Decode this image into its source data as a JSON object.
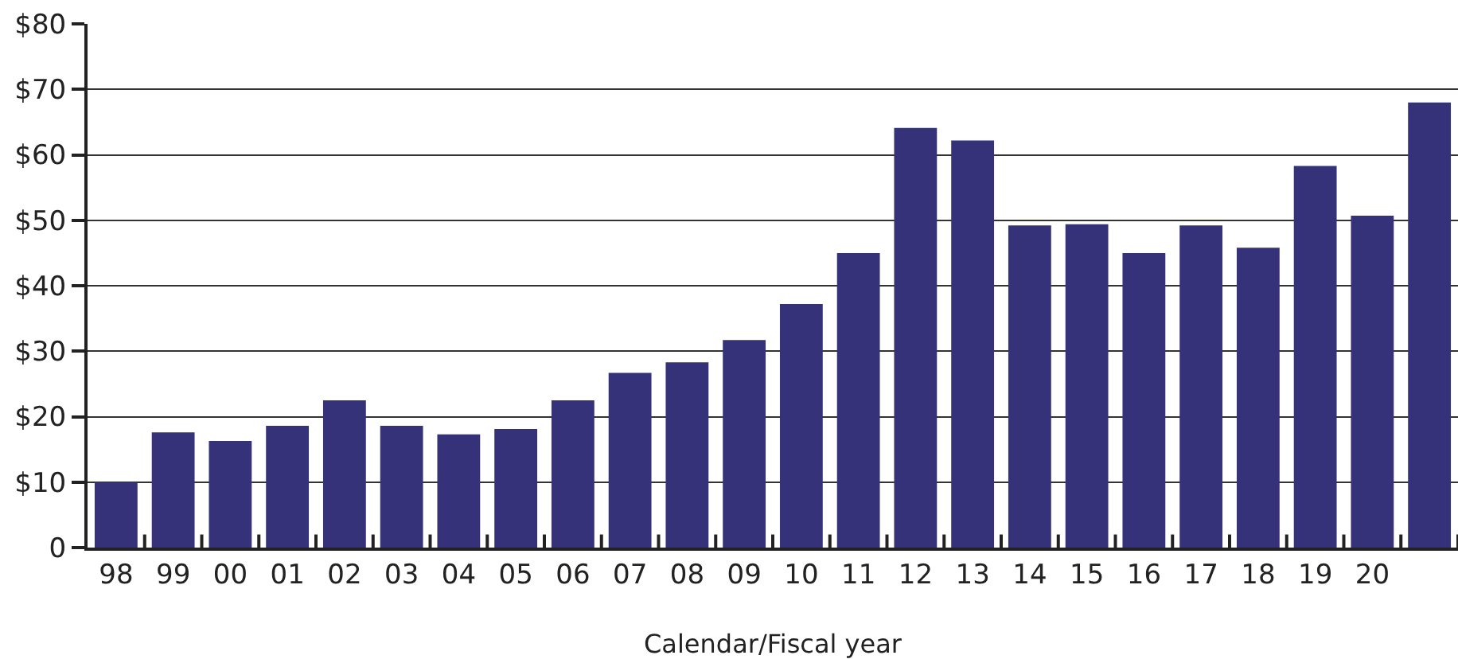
{
  "chart_data": {
    "type": "bar",
    "xlabel": "Calendar/Fiscal year",
    "categories": [
      "98",
      "99",
      "00",
      "01",
      "02",
      "03",
      "04",
      "05",
      "06",
      "07",
      "08",
      "09",
      "10",
      "11",
      "12",
      "13",
      "14",
      "15",
      "16",
      "17",
      "18",
      "19",
      "20",
      null
    ],
    "values": [
      10.0,
      17.6,
      16.3,
      18.6,
      22.5,
      18.6,
      17.3,
      18.1,
      22.5,
      26.7,
      28.3,
      31.7,
      37.2,
      45.0,
      64.1,
      62.2,
      49.2,
      49.4,
      45.0,
      49.2,
      45.8,
      58.3,
      50.7,
      68.0
    ],
    "color": "#36327a",
    "ylim": [
      0,
      80
    ],
    "yticks": [
      {
        "value": 0,
        "label": "0"
      },
      {
        "value": 10,
        "label": "$10"
      },
      {
        "value": 20,
        "label": "$20"
      },
      {
        "value": 30,
        "label": "$30"
      },
      {
        "value": 40,
        "label": "$40"
      },
      {
        "value": 50,
        "label": "$50"
      },
      {
        "value": 60,
        "label": "$60"
      },
      {
        "value": 70,
        "label": "$70"
      },
      {
        "value": 80,
        "label": "$80"
      }
    ],
    "grid": "y",
    "legend": false
  }
}
